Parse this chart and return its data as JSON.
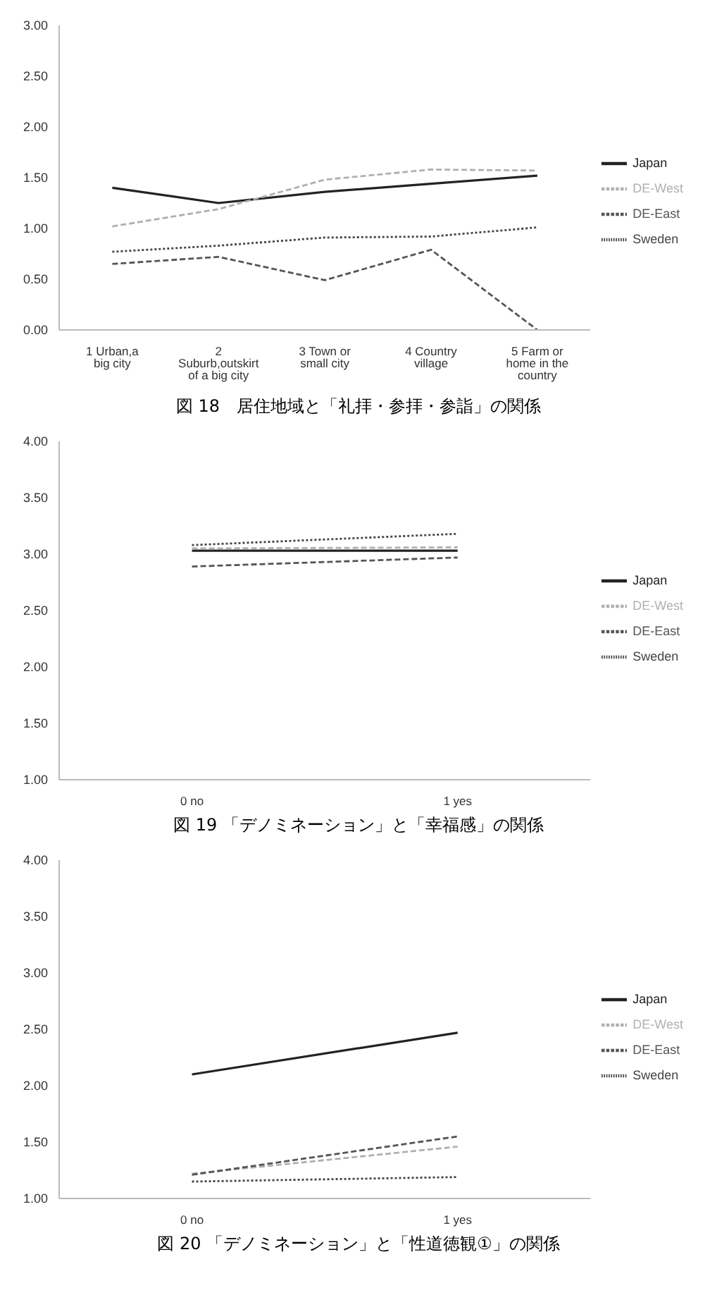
{
  "chart_data": [
    {
      "type": "line",
      "title": "図 18　居住地域と「礼拝・参拝・参詣」の関係",
      "categories": [
        "1 Urban,a big city",
        "2 Suburb,outskirt of a big city",
        "3 Town or small city",
        "4 Country village",
        "5 Farm or home in the country"
      ],
      "series": [
        {
          "name": "Japan",
          "color": "#222222",
          "line_style": "solid",
          "values": [
            1.4,
            1.25,
            1.36,
            1.44,
            1.52
          ]
        },
        {
          "name": "DE-West",
          "color": "#b0b0b0",
          "line_style": "dashed",
          "values": [
            1.02,
            1.19,
            1.48,
            1.58,
            1.57
          ]
        },
        {
          "name": "DE-East",
          "color": "#555555",
          "line_style": "dashed",
          "values": [
            0.65,
            0.72,
            0.49,
            0.79,
            0.0
          ]
        },
        {
          "name": "Sweden",
          "color": "#444444",
          "line_style": "dotted",
          "values": [
            0.77,
            0.83,
            0.91,
            0.92,
            1.01
          ]
        }
      ],
      "ylim": [
        0,
        3
      ],
      "yticks": [
        {
          "value": 0,
          "label": "0.00"
        },
        {
          "value": 0.5,
          "label": "0.50"
        },
        {
          "value": 1,
          "label": "1.00"
        },
        {
          "value": 1.5,
          "label": "1.50"
        },
        {
          "value": 2,
          "label": "2.00"
        },
        {
          "value": 2.5,
          "label": "2.50"
        },
        {
          "value": 3,
          "label": "3.00"
        }
      ],
      "grid": false,
      "legend": "right",
      "marker": "none"
    },
    {
      "type": "line",
      "title": "図 19 「デノミネーション」と「幸福感」の関係",
      "categories": [
        "0 no",
        "1 yes"
      ],
      "series": [
        {
          "name": "Japan",
          "color": "#222222",
          "line_style": "solid",
          "values": [
            3.03,
            3.03
          ]
        },
        {
          "name": "DE-West",
          "color": "#b0b0b0",
          "line_style": "dashed",
          "values": [
            3.05,
            3.06
          ]
        },
        {
          "name": "DE-East",
          "color": "#555555",
          "line_style": "dashed",
          "values": [
            2.89,
            2.97
          ]
        },
        {
          "name": "Sweden",
          "color": "#444444",
          "line_style": "dotted",
          "values": [
            3.08,
            3.18
          ]
        }
      ],
      "ylim": [
        1,
        4
      ],
      "yticks": [
        {
          "value": 1,
          "label": "1.00"
        },
        {
          "value": 1.5,
          "label": "1.50"
        },
        {
          "value": 2,
          "label": "2.00"
        },
        {
          "value": 2.5,
          "label": "2.50"
        },
        {
          "value": 3,
          "label": "3.00"
        },
        {
          "value": 3.5,
          "label": "3.50"
        },
        {
          "value": 4,
          "label": "4.00"
        }
      ],
      "grid": false,
      "legend": "right",
      "marker": "none"
    },
    {
      "type": "line",
      "title": "図 20 「デノミネーション」と「性道徳観①」の関係",
      "categories": [
        "0 no",
        "1 yes"
      ],
      "series": [
        {
          "name": "Japan",
          "color": "#222222",
          "line_style": "solid",
          "values": [
            2.1,
            2.47
          ]
        },
        {
          "name": "DE-West",
          "color": "#b0b0b0",
          "line_style": "dashed",
          "values": [
            1.22,
            1.46
          ]
        },
        {
          "name": "DE-East",
          "color": "#555555",
          "line_style": "dashed",
          "values": [
            1.21,
            1.55
          ]
        },
        {
          "name": "Sweden",
          "color": "#444444",
          "line_style": "dotted",
          "values": [
            1.15,
            1.19
          ]
        }
      ],
      "ylim": [
        1,
        4
      ],
      "yticks": [
        {
          "value": 1,
          "label": "1.00"
        },
        {
          "value": 1.5,
          "label": "1.50"
        },
        {
          "value": 2,
          "label": "2.00"
        },
        {
          "value": 2.5,
          "label": "2.50"
        },
        {
          "value": 3,
          "label": "3.00"
        },
        {
          "value": 3.5,
          "label": "3.50"
        },
        {
          "value": 4,
          "label": "4.00"
        }
      ],
      "grid": false,
      "legend": "right",
      "marker": "none"
    }
  ]
}
